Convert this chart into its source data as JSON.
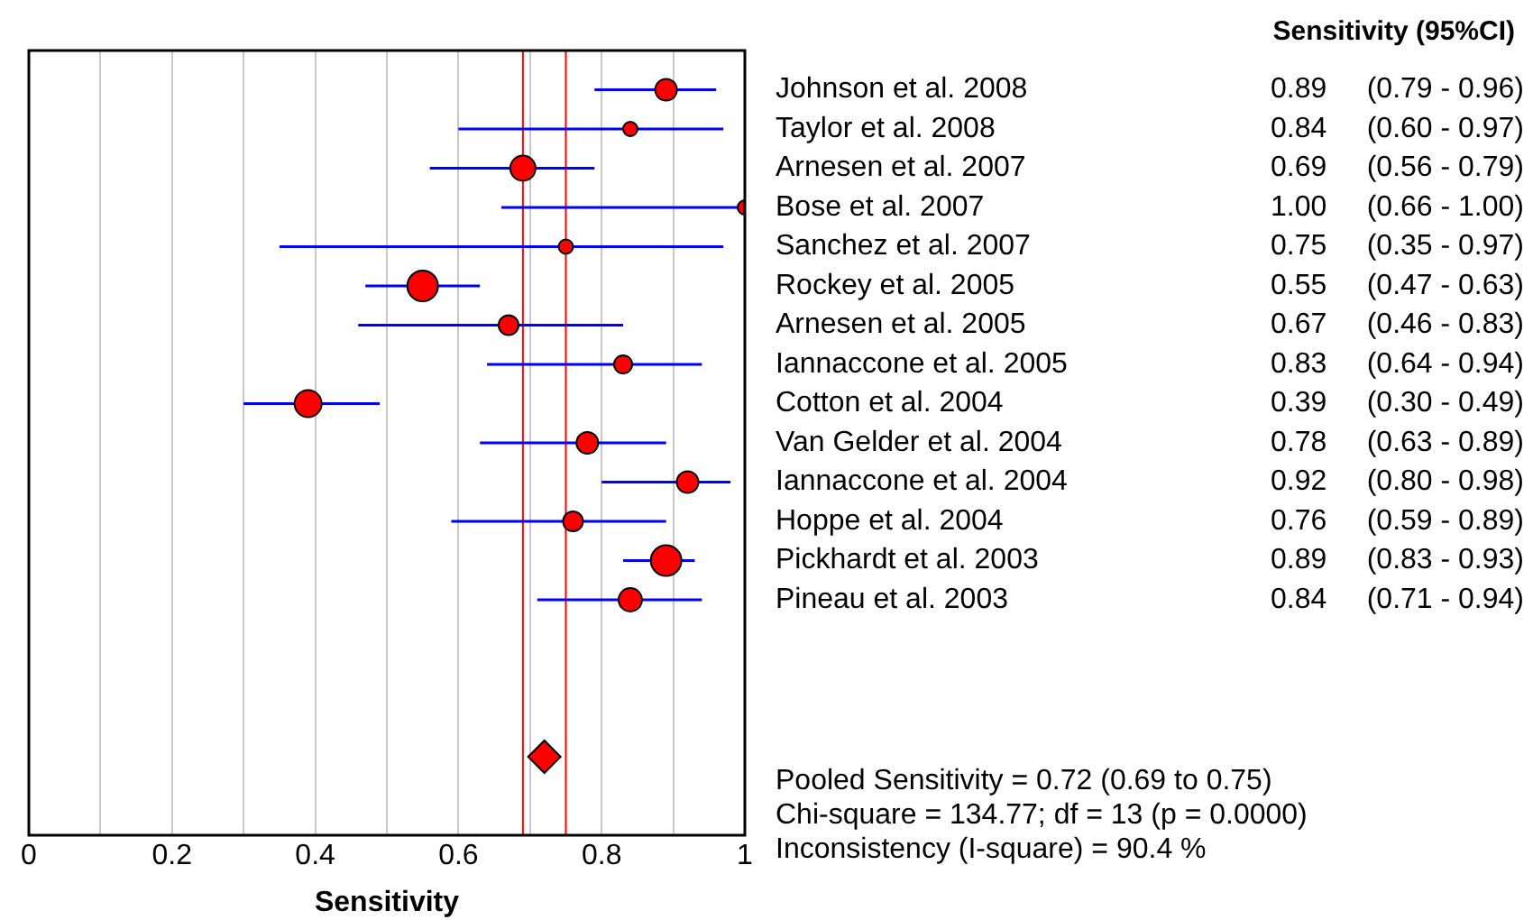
{
  "chart_data": {
    "type": "bubble",
    "orientation": "horizontal",
    "xlabel": "Sensitivity",
    "categories": [
      null,
      "Johnson et al. 2008",
      "Taylor et al. 2008",
      "Arnesen et al. 2007",
      "Bose et al. 2007",
      "Sanchez et al. 2007",
      "Rockey et al. 2005",
      "Arnesen et al. 2005",
      "Iannaccone et al. 2005",
      "Cotton et al. 2004",
      "Van Gelder et al. 2004",
      "Iannaccone et al. 2004",
      "Hoppe et al. 2004",
      "Pickhardt et al. 2003",
      "Pineau et al. 2003",
      null,
      null,
      null,
      null,
      null,
      null
    ],
    "series": [
      {
        "color": "#ff0000",
        "marker": "circle",
        "values": [
          null,
          0.89,
          0.84,
          0.69,
          1.0,
          0.75,
          0.55,
          0.67,
          0.83,
          0.39,
          0.78,
          0.92,
          0.76,
          0.89,
          0.84,
          null,
          null,
          null,
          null,
          null,
          null
        ],
        "sizes": [
          null,
          0.5,
          0.22,
          0.68,
          0.22,
          0.22,
          1,
          0.42,
          0.35,
          0.78,
          0.5,
          0.5,
          0.42,
          1,
          0.58,
          null,
          null,
          null,
          null,
          null,
          null
        ],
        "errors": [
          null,
          [
            0.79,
            0.96
          ],
          [
            0.6,
            0.97
          ],
          [
            0.56,
            0.79
          ],
          [
            0.66,
            1.0
          ],
          [
            0.35,
            0.97
          ],
          [
            0.47,
            0.63
          ],
          [
            0.46,
            0.83
          ],
          [
            0.64,
            0.94
          ],
          [
            0.3,
            0.49
          ],
          [
            0.63,
            0.89
          ],
          [
            0.8,
            0.98
          ],
          [
            0.59,
            0.89
          ],
          [
            0.83,
            0.93
          ],
          [
            0.71,
            0.94
          ],
          null,
          null,
          null,
          null,
          null,
          null
        ],
        "value_labels": [
          null,
          "0.89     (0.79 - 0.96)",
          "0.84     (0.60 - 0.97)",
          "0.69     (0.56 - 0.79)",
          "1.00     (0.66 - 1.00)",
          "0.75     (0.35 - 0.97)",
          "0.55     (0.47 - 0.63)",
          "0.67     (0.46 - 0.83)",
          "0.83     (0.64 - 0.94)",
          "0.39     (0.30 - 0.49)",
          "0.78     (0.63 - 0.89)",
          "0.92     (0.80 - 0.98)",
          "0.76     (0.59 - 0.89)",
          "0.89     (0.83 - 0.93)",
          "0.84     (0.71 - 0.94)",
          null,
          null,
          null,
          null,
          null,
          null
        ]
      },
      {
        "type": "scatter",
        "color": "#ff0000",
        "marker": "diamond",
        "values": [
          null,
          null,
          null,
          null,
          null,
          null,
          null,
          null,
          null,
          null,
          null,
          null,
          null,
          null,
          null,
          null,
          null,
          null,
          0.72,
          null,
          null
        ]
      }
    ],
    "ref_lines": [
      {
        "axis": "x",
        "value": 0.69,
        "color": "#ff0000"
      },
      {
        "axis": "x",
        "value": 0.75,
        "color": "#ff0000"
      }
    ],
    "xlim": [
      0,
      1
    ],
    "xticks": [
      0,
      {
        "value": 0.1,
        "label": null
      },
      {
        "value": 0.2,
        "label": "0.2"
      },
      {
        "value": 0.3,
        "label": null
      },
      {
        "value": 0.4,
        "label": "0.4"
      },
      {
        "value": 0.5,
        "label": null
      },
      {
        "value": 0.6,
        "label": "0.6"
      },
      {
        "value": 0.7,
        "label": null
      },
      {
        "value": 0.8,
        "label": "0.8"
      },
      {
        "value": 0.9,
        "label": null
      },
      1
    ],
    "grid": "x",
    "legend": false,
    "annotations": [
      "Sensitivity (95%CI)",
      "Pooled Sensitivity = 0.72 (0.69 to 0.75)",
      "Chi-square = 134.77; df = 13 (p = 0.0000)",
      "Inconsistency (I-square) = 90.4 %"
    ]
  }
}
